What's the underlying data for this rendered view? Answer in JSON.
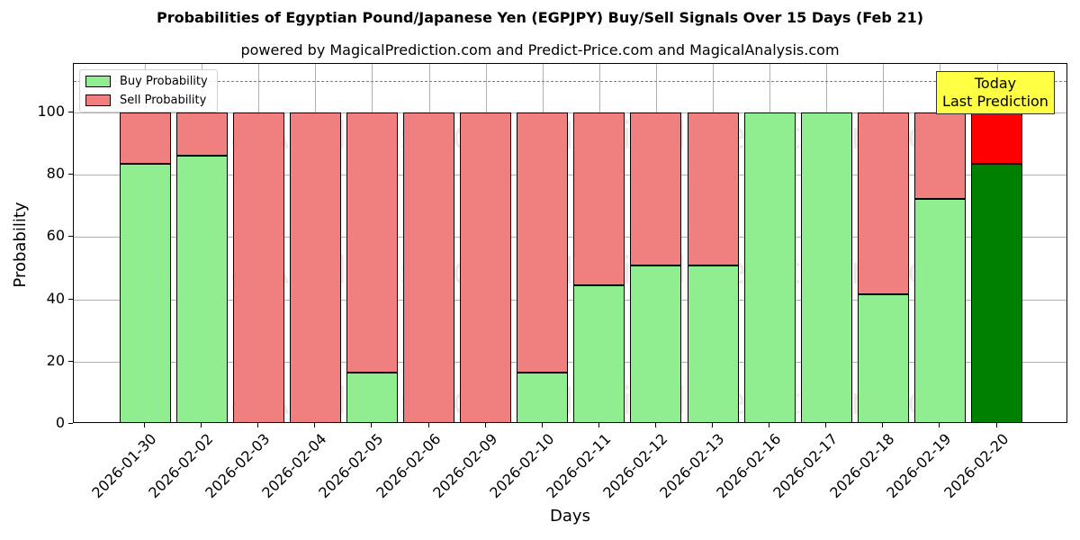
{
  "header": {
    "title": "Probabilities of Egyptian Pound/Japanese Yen (EGPJPY) Buy/Sell Signals Over 15 Days (Feb 21)",
    "subtitle": "powered by MagicalPrediction.com and Predict-Price.com and MagicalAnalysis.com"
  },
  "legend": {
    "buy_label": "Buy Probability",
    "sell_label": "Sell Probability"
  },
  "annotation": {
    "line1": "Today",
    "line2": "Last Prediction"
  },
  "axes": {
    "xlabel": "Days",
    "ylabel": "Probability",
    "yticks": [
      "0",
      "20",
      "40",
      "60",
      "80",
      "100"
    ]
  },
  "watermarks": [
    "MagicalAnalysis.com",
    "MagicalPrediction.com"
  ],
  "colors": {
    "buy": "#90ee90",
    "sell": "#f08080",
    "today_buy": "#008000",
    "today_sell": "#ff0000",
    "annotation_bg": "#ffff44"
  },
  "chart_data": {
    "type": "bar",
    "stacked": true,
    "title": "Probabilities of Egyptian Pound/Japanese Yen (EGPJPY) Buy/Sell Signals Over 15 Days (Feb 21)",
    "subtitle": "powered by MagicalPrediction.com and Predict-Price.com and MagicalAnalysis.com",
    "xlabel": "Days",
    "ylabel": "Probability",
    "ylim": [
      0,
      115
    ],
    "reference_line": 110,
    "grid": true,
    "legend_position": "upper left",
    "categories": [
      "2026-01-30",
      "2026-02-02",
      "2026-02-03",
      "2026-02-04",
      "2026-02-05",
      "2026-02-06",
      "2026-02-09",
      "2026-02-10",
      "2026-02-11",
      "2026-02-12",
      "2026-02-13",
      "2026-02-16",
      "2026-02-17",
      "2026-02-18",
      "2026-02-19",
      "2026-02-20"
    ],
    "series": [
      {
        "name": "Buy Probability",
        "values": [
          83.5,
          86.1,
          0,
          0,
          16.5,
          0,
          0,
          16.5,
          44.5,
          50.9,
          50.9,
          100,
          100,
          41.6,
          72.3,
          83.5
        ]
      },
      {
        "name": "Sell Probability",
        "values": [
          16.5,
          13.9,
          100,
          100,
          83.5,
          100,
          100,
          83.5,
          55.5,
          49.1,
          49.1,
          0,
          0,
          58.4,
          27.7,
          16.5
        ]
      }
    ],
    "annotations": [
      {
        "text": "Today\nLast Prediction",
        "x": "2026-02-20"
      }
    ]
  }
}
